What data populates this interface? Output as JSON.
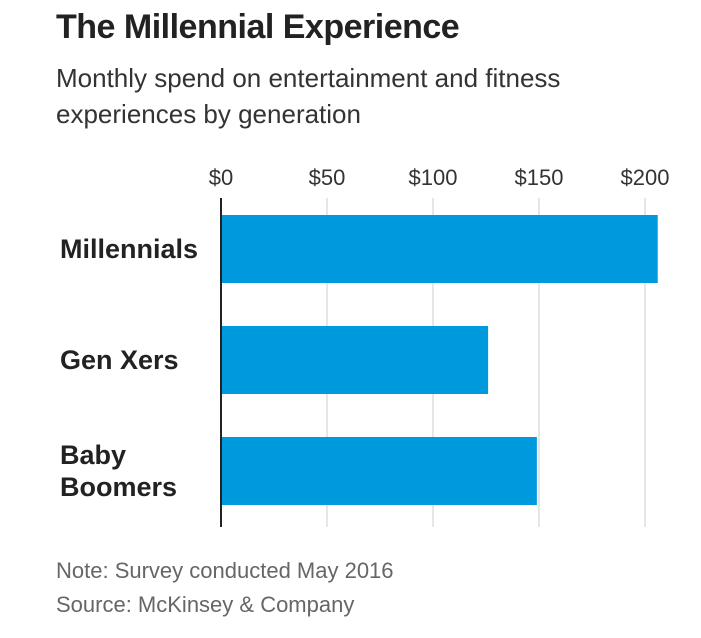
{
  "chart_data": {
    "type": "bar",
    "orientation": "horizontal",
    "title": "The Millennial Experience",
    "subtitle": "Monthly spend on entertainment and fitness experiences by generation",
    "categories": [
      "Millennials",
      "Gen Xers",
      "Baby Boomers"
    ],
    "category_lines": [
      [
        "Millennials"
      ],
      [
        "Gen Xers"
      ],
      [
        "Baby",
        "Boomers"
      ]
    ],
    "values": [
      206,
      126,
      149
    ],
    "x_ticks": [
      "$0",
      "$50",
      "$100",
      "$150",
      "$200"
    ],
    "x_tick_values": [
      0,
      50,
      100,
      150,
      200
    ],
    "xlim": [
      0,
      200
    ],
    "grid": true,
    "tick_position": "top",
    "bar_color": "#0099dd",
    "grid_color": "#dddddd",
    "axis_color": "#222222"
  },
  "footer": {
    "note": "Note: Survey conducted May 2016",
    "source": "Source: McKinsey & Company"
  }
}
